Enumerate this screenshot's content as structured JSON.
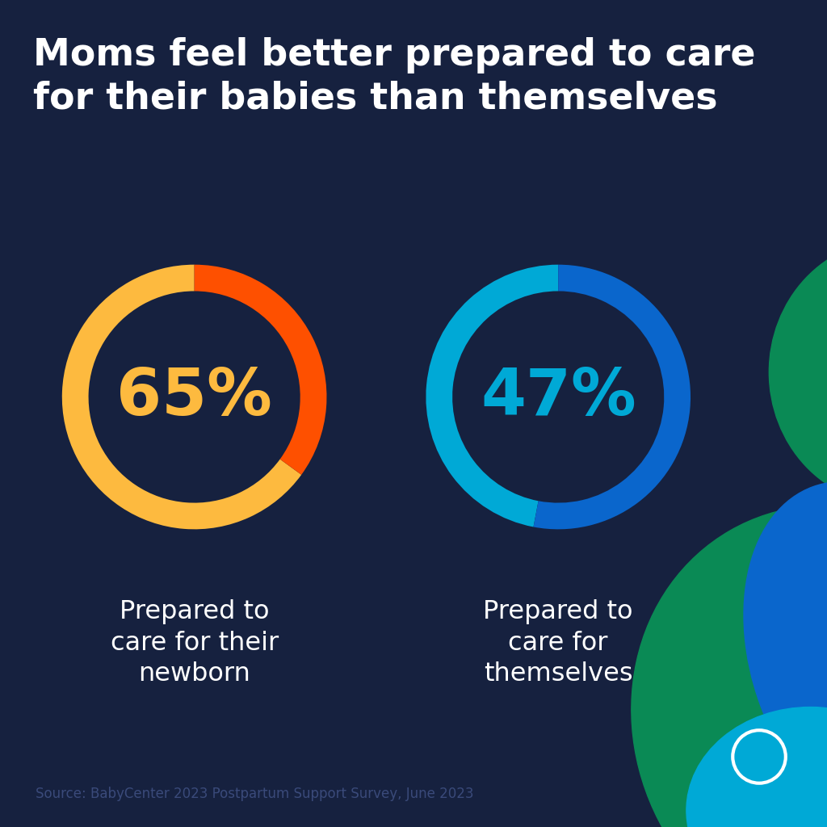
{
  "title": "Moms feel better prepared to care for their babies than themselves",
  "source": "Source: BabyCenter 2023 Postpartum Support Survey, June 2023",
  "chart_data": [
    {
      "type": "pie",
      "categories": [
        "Prepared to care for their newborn"
      ],
      "values": [
        65
      ],
      "value_labels": [
        "65%"
      ],
      "colors": [
        "#FDBA3F",
        "#FE5000"
      ],
      "data_labels": true
    },
    {
      "type": "pie",
      "categories": [
        "Prepared to care for themselves"
      ],
      "values": [
        47
      ],
      "value_labels": [
        "47%"
      ],
      "colors": [
        "#00A9D6",
        "#0A66CC"
      ],
      "data_labels": true
    }
  ]
}
